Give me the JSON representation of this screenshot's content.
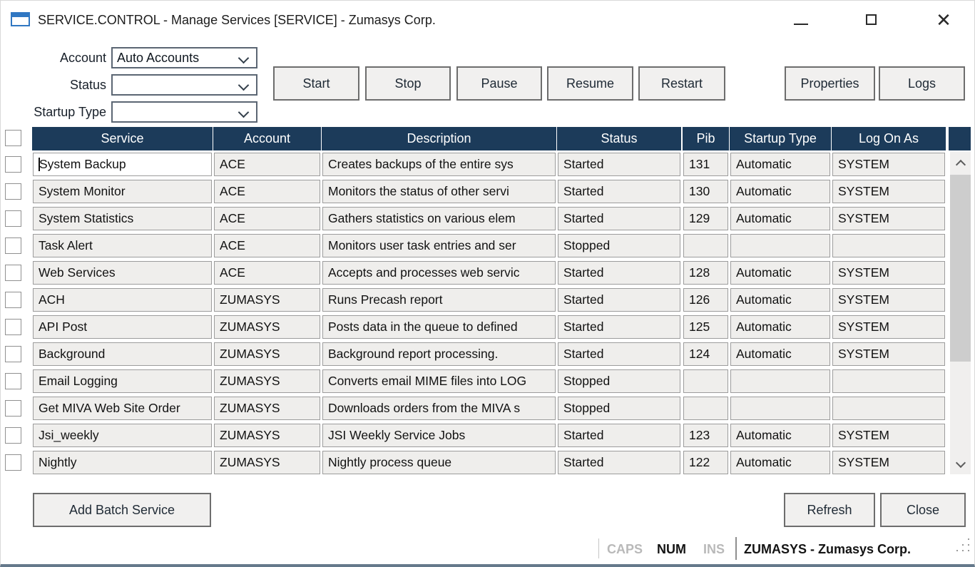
{
  "window": {
    "title": "SERVICE.CONTROL - Manage Services [SERVICE] - Zumasys Corp."
  },
  "colors": {
    "header_bg": "#1c3b5a",
    "cell_bg": "#efeeec",
    "accent_blue": "#3077c2",
    "bottom_border": "#65798b"
  },
  "filters": [
    {
      "label": "Account",
      "value": "Auto Accounts"
    },
    {
      "label": "Status",
      "value": ""
    },
    {
      "label": "Startup Type",
      "value": ""
    }
  ],
  "actions": [
    "Start",
    "Stop",
    "Pause",
    "Resume",
    "Restart"
  ],
  "right_actions": [
    "Properties",
    "Logs"
  ],
  "table": {
    "columns": [
      "Service",
      "Account",
      "Description",
      "Status",
      "Pib",
      "Startup Type",
      "Log On As"
    ],
    "rows": [
      {
        "checked": false,
        "editing": true,
        "service": "System Backup",
        "account": "ACE",
        "description": "Creates backups of the entire sys",
        "status": "Started",
        "pib": "131",
        "startup_type": "Automatic",
        "log_on_as": "SYSTEM"
      },
      {
        "checked": false,
        "editing": false,
        "service": "System Monitor",
        "account": "ACE",
        "description": "Monitors the status of other servi",
        "status": "Started",
        "pib": "130",
        "startup_type": "Automatic",
        "log_on_as": "SYSTEM"
      },
      {
        "checked": false,
        "editing": false,
        "service": "System Statistics",
        "account": "ACE",
        "description": "Gathers statistics on various elem",
        "status": "Started",
        "pib": "129",
        "startup_type": "Automatic",
        "log_on_as": "SYSTEM"
      },
      {
        "checked": false,
        "editing": false,
        "service": "Task Alert",
        "account": "ACE",
        "description": "Monitors user task entries and ser",
        "status": "Stopped",
        "pib": "",
        "startup_type": "",
        "log_on_as": ""
      },
      {
        "checked": false,
        "editing": false,
        "service": "Web Services",
        "account": "ACE",
        "description": "Accepts and processes web servic",
        "status": "Started",
        "pib": "128",
        "startup_type": "Automatic",
        "log_on_as": "SYSTEM"
      },
      {
        "checked": false,
        "editing": false,
        "service": "ACH",
        "account": "ZUMASYS",
        "description": "Runs Precash report",
        "status": "Started",
        "pib": "126",
        "startup_type": "Automatic",
        "log_on_as": "SYSTEM"
      },
      {
        "checked": false,
        "editing": false,
        "service": "API Post",
        "account": "ZUMASYS",
        "description": "Posts data in the queue to defined",
        "status": "Started",
        "pib": "125",
        "startup_type": "Automatic",
        "log_on_as": "SYSTEM"
      },
      {
        "checked": false,
        "editing": false,
        "service": "Background",
        "account": "ZUMASYS",
        "description": "Background report processing.",
        "status": "Started",
        "pib": "124",
        "startup_type": "Automatic",
        "log_on_as": "SYSTEM"
      },
      {
        "checked": false,
        "editing": false,
        "service": "Email Logging",
        "account": "ZUMASYS",
        "description": "Converts email MIME files into LOG",
        "status": "Stopped",
        "pib": "",
        "startup_type": "",
        "log_on_as": ""
      },
      {
        "checked": false,
        "editing": false,
        "service": "Get MIVA Web Site Order",
        "account": "ZUMASYS",
        "description": "Downloads orders from the MIVA s",
        "status": "Stopped",
        "pib": "",
        "startup_type": "",
        "log_on_as": ""
      },
      {
        "checked": false,
        "editing": false,
        "service": "Jsi_weekly",
        "account": "ZUMASYS",
        "description": "JSI Weekly Service Jobs",
        "status": "Started",
        "pib": "123",
        "startup_type": "Automatic",
        "log_on_as": "SYSTEM"
      },
      {
        "checked": false,
        "editing": false,
        "service": "Nightly",
        "account": "ZUMASYS",
        "description": "Nightly process queue",
        "status": "Started",
        "pib": "122",
        "startup_type": "Automatic",
        "log_on_as": "SYSTEM"
      }
    ]
  },
  "footer": {
    "add_batch_label": "Add Batch Service",
    "refresh_label": "Refresh",
    "close_label": "Close"
  },
  "status_bar": {
    "caps": "CAPS",
    "num": "NUM",
    "ins": "INS",
    "caps_active": false,
    "num_active": true,
    "ins_active": false,
    "session": "ZUMASYS - Zumasys Corp."
  }
}
